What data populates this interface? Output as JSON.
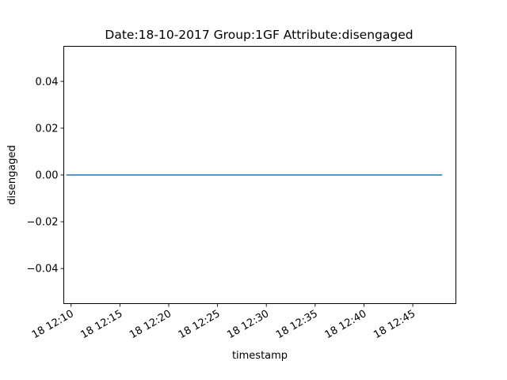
{
  "chart_data": {
    "type": "line",
    "title": "Date:18-10-2017  Group:1GF Attribute:disengaged",
    "xlabel": "timestamp",
    "ylabel": "disengaged",
    "x_type": "datetime",
    "x_range": [
      "2017-10-18 12:09:15",
      "2017-10-18 12:49:25"
    ],
    "ylim": [
      -0.055,
      0.055
    ],
    "x_ticks": [
      {
        "value": "2017-10-18 12:10:00",
        "label": "18 12:10"
      },
      {
        "value": "2017-10-18 12:15:00",
        "label": "18 12:15"
      },
      {
        "value": "2017-10-18 12:20:00",
        "label": "18 12:20"
      },
      {
        "value": "2017-10-18 12:25:00",
        "label": "18 12:25"
      },
      {
        "value": "2017-10-18 12:30:00",
        "label": "18 12:30"
      },
      {
        "value": "2017-10-18 12:35:00",
        "label": "18 12:35"
      },
      {
        "value": "2017-10-18 12:40:00",
        "label": "18 12:40"
      },
      {
        "value": "2017-10-18 12:45:00",
        "label": "18 12:45"
      }
    ],
    "y_ticks": [
      {
        "value": 0.04,
        "label": "0.04"
      },
      {
        "value": 0.02,
        "label": "0.02"
      },
      {
        "value": 0.0,
        "label": "0.00"
      },
      {
        "value": -0.02,
        "label": "−0.02"
      },
      {
        "value": -0.04,
        "label": "−0.04"
      }
    ],
    "grid": false,
    "legend": "none",
    "series": [
      {
        "color": "#1f77b4",
        "x": [
          "2017-10-18 12:09:30",
          "2017-10-18 12:48:00"
        ],
        "y": [
          0,
          0
        ]
      }
    ]
  }
}
